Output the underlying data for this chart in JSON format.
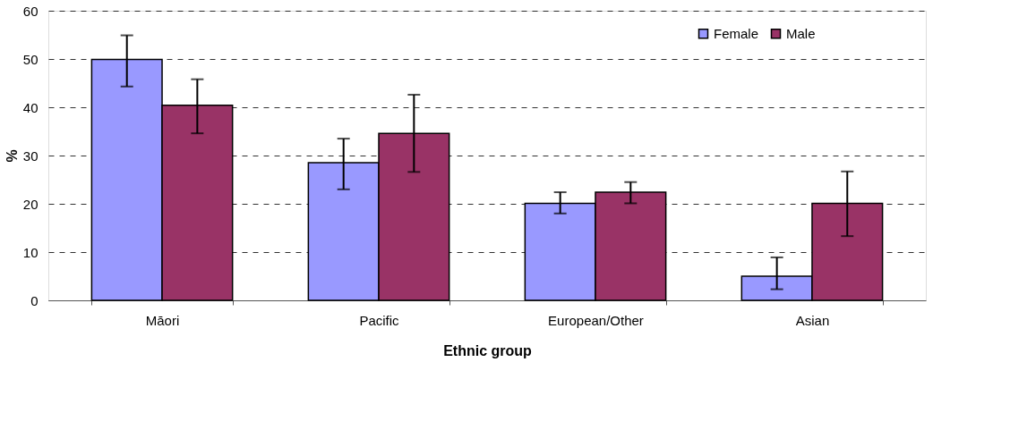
{
  "chart_data": {
    "type": "bar",
    "xlabel": "Ethnic group",
    "ylabel": "%",
    "categories": [
      "Māori",
      "Pacific",
      "European/Other",
      "Asian"
    ],
    "series": [
      {
        "name": "Female",
        "color": "#9999ff",
        "values": [
          49.9,
          28.5,
          20.1,
          5.0
        ],
        "errors": [
          [
            44.3,
            54.9
          ],
          [
            23.0,
            33.5
          ],
          [
            18.0,
            22.4
          ],
          [
            2.3,
            8.9
          ]
        ]
      },
      {
        "name": "Male",
        "color": "#993366",
        "values": [
          40.4,
          34.6,
          22.4,
          20.1
        ],
        "errors": [
          [
            34.6,
            45.8
          ],
          [
            26.6,
            42.6
          ],
          [
            20.1,
            24.5
          ],
          [
            13.3,
            26.7
          ]
        ]
      }
    ],
    "ylim": [
      0,
      60
    ],
    "yticks": [
      0,
      10,
      20,
      30,
      40,
      50,
      60
    ],
    "grid": "y",
    "legend": "top right"
  }
}
